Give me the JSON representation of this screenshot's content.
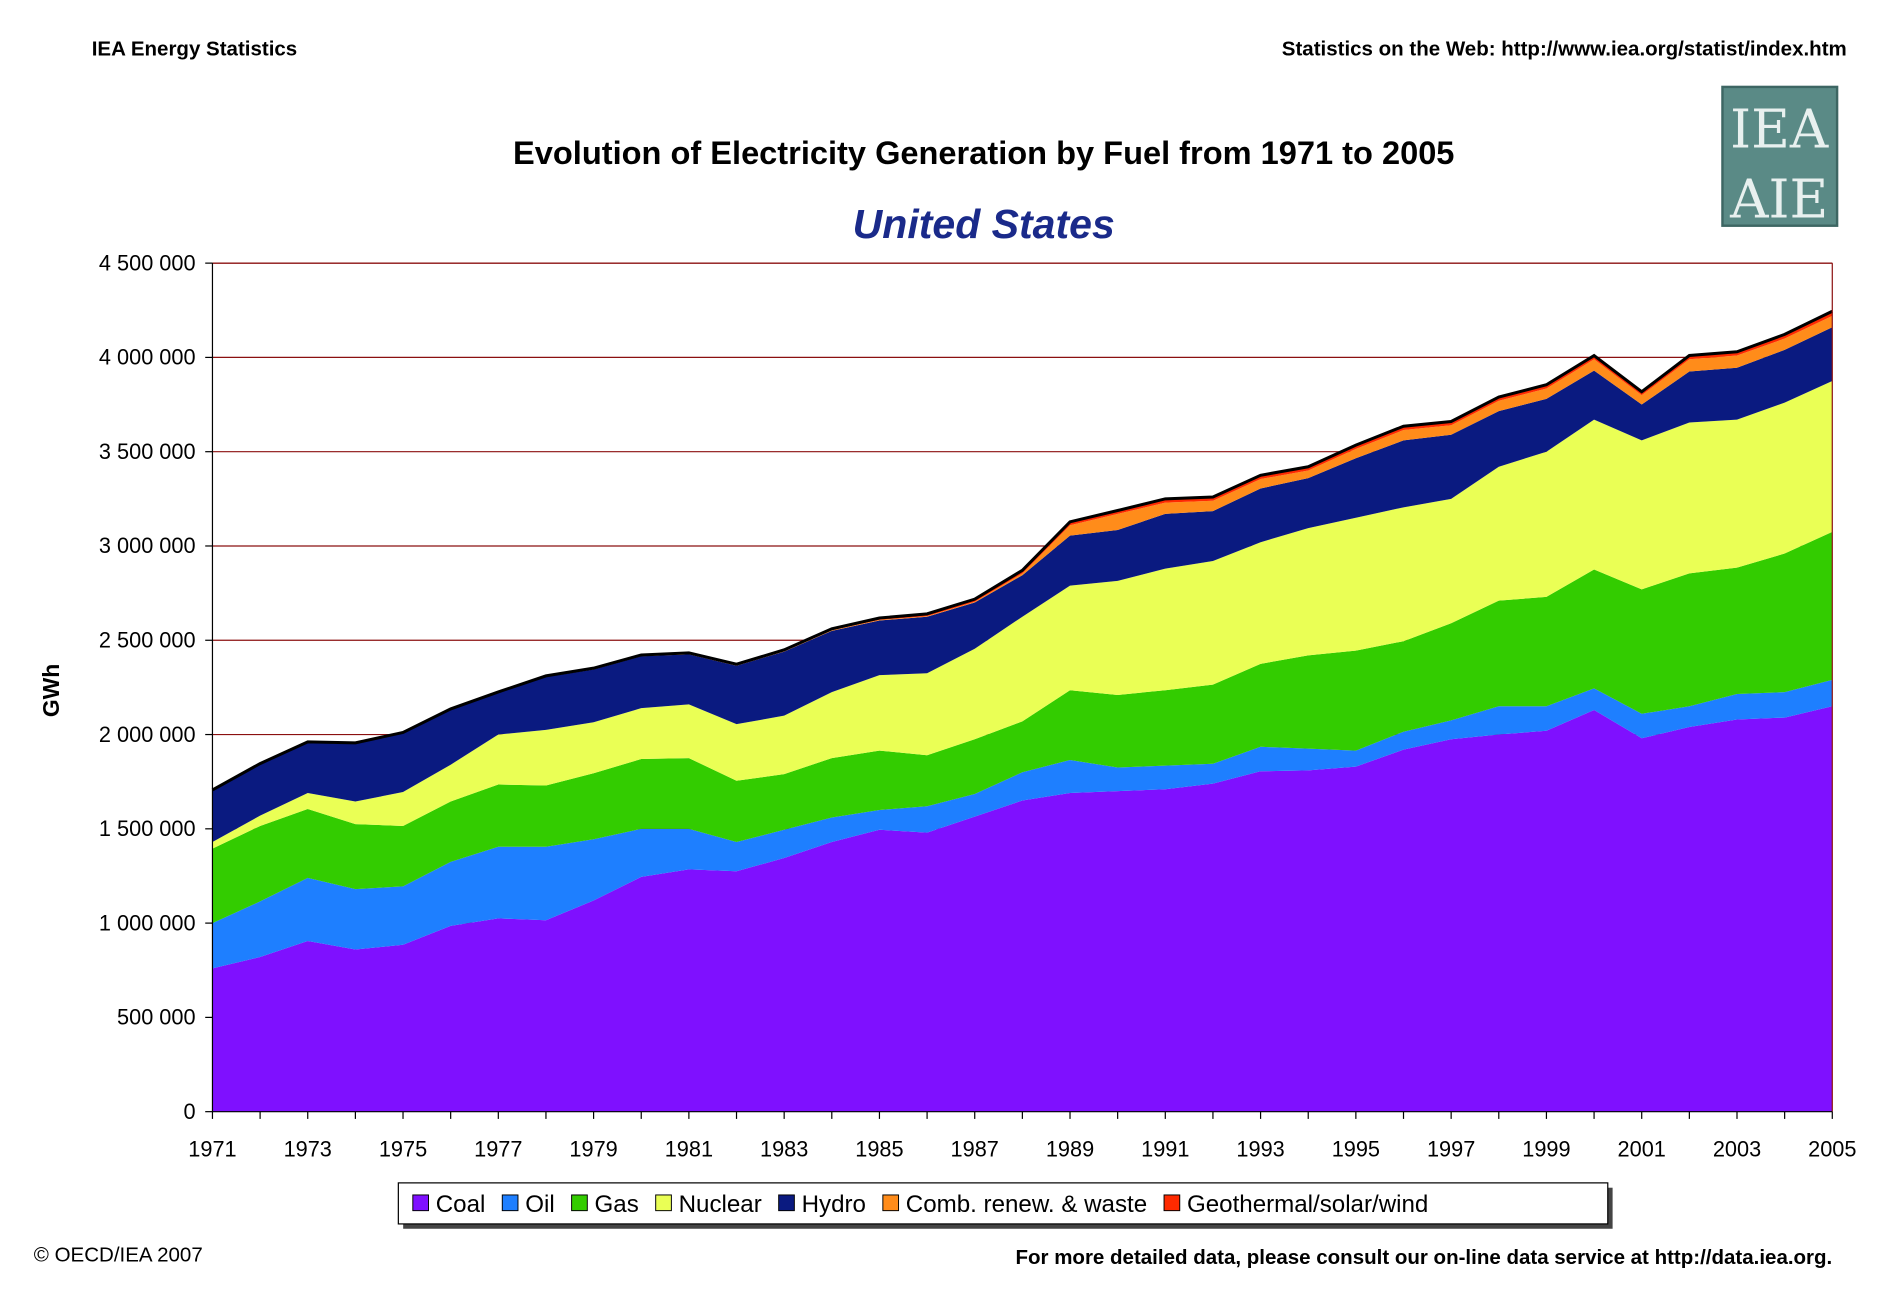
{
  "header": {
    "left": "IEA Energy Statistics",
    "right": "Statistics on the Web: http://www.iea.org/statist/index.htm"
  },
  "logo": {
    "text_top": "IEA",
    "text_bottom": "AIE",
    "color": "#5a8a86"
  },
  "footer": {
    "left": "© OECD/IEA 2007",
    "right": "For more detailed data, please consult our on-line data service at http://data.iea.org."
  },
  "chart_data": {
    "type": "area",
    "stacked": true,
    "title": "Evolution of Electricity Generation by Fuel from 1971 to 2005",
    "subtitle": "United States",
    "xlabel": "",
    "ylabel": "GWh",
    "ylim": [
      0,
      4500000
    ],
    "xlim": [
      1971,
      2005
    ],
    "yticks": [
      "0",
      "500 000",
      "1 000 000",
      "1 500 000",
      "2 000 000",
      "2 500 000",
      "3 000 000",
      "3 500 000",
      "4 000 000",
      "4 500 000"
    ],
    "xticks": [
      "1971",
      "1973",
      "1975",
      "1977",
      "1979",
      "1981",
      "1983",
      "1985",
      "1987",
      "1989",
      "1991",
      "1993",
      "1995",
      "1997",
      "1999",
      "2001",
      "2003",
      "2005"
    ],
    "grid": true,
    "legend_position": "bottom",
    "x": [
      1971,
      1972,
      1973,
      1974,
      1975,
      1976,
      1977,
      1978,
      1979,
      1980,
      1981,
      1982,
      1983,
      1984,
      1985,
      1986,
      1987,
      1988,
      1989,
      1990,
      1991,
      1992,
      1993,
      1994,
      1995,
      1996,
      1997,
      1998,
      1999,
      2000,
      2001,
      2002,
      2003,
      2004,
      2005
    ],
    "series": [
      {
        "name": "Coal",
        "color": "#7f10ff",
        "values": [
          760000,
          820000,
          905000,
          860000,
          885000,
          985000,
          1025000,
          1015000,
          1120000,
          1245000,
          1285000,
          1275000,
          1345000,
          1430000,
          1495000,
          1480000,
          1565000,
          1650000,
          1690000,
          1700000,
          1710000,
          1740000,
          1805000,
          1810000,
          1830000,
          1920000,
          1975000,
          2000000,
          2020000,
          2130000,
          1980000,
          2040000,
          2080000,
          2090000,
          2150000
        ]
      },
      {
        "name": "Oil",
        "color": "#1e7fff",
        "values": [
          240000,
          295000,
          335000,
          320000,
          310000,
          340000,
          380000,
          390000,
          325000,
          255000,
          215000,
          155000,
          150000,
          130000,
          105000,
          140000,
          120000,
          150000,
          175000,
          125000,
          125000,
          105000,
          130000,
          115000,
          85000,
          95000,
          100000,
          150000,
          130000,
          115000,
          130000,
          110000,
          135000,
          135000,
          140000
        ]
      },
      {
        "name": "Gas",
        "color": "#33cc00",
        "values": [
          395000,
          400000,
          365000,
          345000,
          320000,
          320000,
          330000,
          325000,
          350000,
          370000,
          375000,
          325000,
          295000,
          315000,
          315000,
          270000,
          290000,
          270000,
          370000,
          385000,
          400000,
          420000,
          440000,
          495000,
          530000,
          480000,
          515000,
          560000,
          580000,
          630000,
          660000,
          705000,
          670000,
          735000,
          785000
        ]
      },
      {
        "name": "Nuclear",
        "color": "#eaff55",
        "values": [
          35000,
          55000,
          85000,
          120000,
          180000,
          195000,
          265000,
          295000,
          270000,
          270000,
          285000,
          300000,
          310000,
          350000,
          400000,
          435000,
          480000,
          555000,
          555000,
          605000,
          645000,
          655000,
          645000,
          675000,
          705000,
          710000,
          660000,
          710000,
          770000,
          795000,
          790000,
          800000,
          785000,
          800000,
          800000
        ]
      },
      {
        "name": "Hydro",
        "color": "#0a1a80",
        "values": [
          270000,
          270000,
          265000,
          305000,
          310000,
          290000,
          220000,
          280000,
          280000,
          275000,
          265000,
          310000,
          340000,
          325000,
          290000,
          300000,
          245000,
          220000,
          265000,
          270000,
          290000,
          265000,
          285000,
          265000,
          315000,
          355000,
          340000,
          295000,
          280000,
          260000,
          190000,
          270000,
          275000,
          280000,
          285000
        ]
      },
      {
        "name": "Comb. renew. & waste",
        "color": "#ff8c1a",
        "values": [
          3000,
          3000,
          3000,
          3000,
          3000,
          3000,
          3000,
          3000,
          3000,
          3000,
          3000,
          3000,
          3000,
          3000,
          3000,
          3000,
          4000,
          10000,
          55000,
          85000,
          60000,
          55000,
          50000,
          40000,
          50000,
          55000,
          50000,
          55000,
          55000,
          60000,
          50000,
          65000,
          65000,
          60000,
          60000
        ]
      },
      {
        "name": "Geothermal/solar/wind",
        "color": "#ff2a00",
        "values": [
          3000,
          3000,
          3000,
          3000,
          3000,
          3000,
          3000,
          3000,
          4000,
          4000,
          5000,
          5000,
          6000,
          8000,
          10000,
          12000,
          14000,
          16000,
          18000,
          18000,
          20000,
          20000,
          20000,
          20000,
          20000,
          20000,
          20000,
          20000,
          20000,
          20000,
          18000,
          20000,
          20000,
          22000,
          25000
        ]
      }
    ]
  }
}
